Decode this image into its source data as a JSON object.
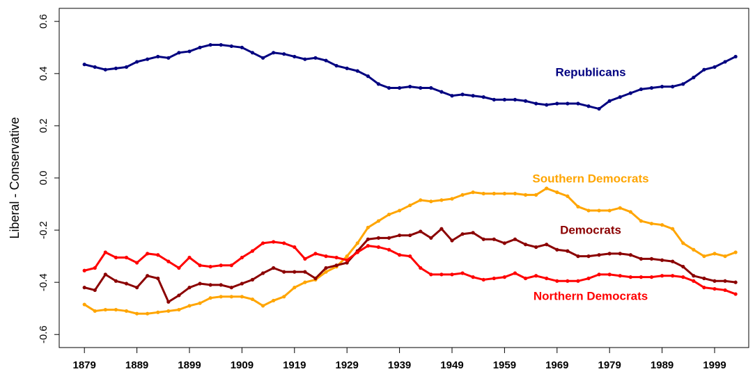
{
  "chart_data": {
    "type": "line",
    "ylabel": "Liberal - Conservative",
    "x": [
      1879,
      1881,
      1883,
      1885,
      1887,
      1889,
      1891,
      1893,
      1895,
      1897,
      1899,
      1901,
      1903,
      1905,
      1907,
      1909,
      1911,
      1913,
      1915,
      1917,
      1919,
      1921,
      1923,
      1925,
      1927,
      1929,
      1931,
      1933,
      1935,
      1937,
      1939,
      1941,
      1943,
      1945,
      1947,
      1949,
      1951,
      1953,
      1955,
      1957,
      1959,
      1961,
      1963,
      1965,
      1967,
      1969,
      1971,
      1973,
      1975,
      1977,
      1979,
      1981,
      1983,
      1985,
      1987,
      1989,
      1991,
      1993,
      1995,
      1997,
      1999,
      2001,
      2003
    ],
    "xlim": [
      1874.2,
      2005.5
    ],
    "xticks": [
      1879,
      1889,
      1899,
      1909,
      1919,
      1929,
      1939,
      1949,
      1959,
      1969,
      1979,
      1989,
      1999
    ],
    "ylim": [
      -0.65,
      0.65
    ],
    "yticks": [
      -0.6,
      -0.4,
      -0.2,
      {
        "value": 0,
        "label": "0.0"
      },
      0.2,
      0.4,
      0.6
    ],
    "series": [
      {
        "name": "Republicans",
        "color": "#000080",
        "values": [
          0.435,
          0.425,
          0.415,
          0.42,
          0.425,
          0.445,
          0.455,
          0.465,
          0.46,
          0.48,
          0.485,
          0.5,
          0.51,
          0.51,
          0.505,
          0.5,
          0.48,
          0.46,
          0.48,
          0.475,
          0.465,
          0.455,
          0.46,
          0.45,
          0.43,
          0.42,
          0.41,
          0.39,
          0.36,
          0.345,
          0.345,
          0.35,
          0.345,
          0.345,
          0.33,
          0.315,
          0.32,
          0.315,
          0.31,
          0.3,
          0.3,
          0.3,
          0.295,
          0.285,
          0.28,
          0.285,
          0.285,
          0.285,
          0.275,
          0.265,
          0.295,
          0.31,
          0.325,
          0.34,
          0.345,
          0.35,
          0.35,
          0.36,
          0.385,
          0.415,
          0.425,
          0.445,
          0.465
        ]
      },
      {
        "name": "Southern Democrats",
        "color": "#FFA500",
        "values": [
          -0.485,
          -0.51,
          -0.505,
          -0.505,
          -0.51,
          -0.52,
          -0.52,
          -0.515,
          -0.51,
          -0.505,
          -0.49,
          -0.48,
          -0.46,
          -0.455,
          -0.455,
          -0.455,
          -0.465,
          -0.49,
          -0.47,
          -0.455,
          -0.42,
          -0.4,
          -0.39,
          -0.36,
          -0.34,
          -0.3,
          -0.25,
          -0.19,
          -0.165,
          -0.14,
          -0.125,
          -0.105,
          -0.085,
          -0.09,
          -0.085,
          -0.08,
          -0.065,
          -0.055,
          -0.06,
          -0.06,
          -0.06,
          -0.06,
          -0.065,
          -0.065,
          -0.04,
          -0.055,
          -0.07,
          -0.11,
          -0.125,
          -0.125,
          -0.125,
          -0.115,
          -0.13,
          -0.165,
          -0.175,
          -0.18,
          -0.195,
          -0.25,
          -0.275,
          -0.3,
          -0.29,
          -0.3,
          -0.285
        ]
      },
      {
        "name": "Democrats",
        "color": "#8B0000",
        "values": [
          -0.42,
          -0.43,
          -0.37,
          -0.395,
          -0.405,
          -0.42,
          -0.375,
          -0.385,
          -0.475,
          -0.45,
          -0.42,
          -0.405,
          -0.41,
          -0.41,
          -0.42,
          -0.405,
          -0.39,
          -0.365,
          -0.345,
          -0.36,
          -0.36,
          -0.36,
          -0.385,
          -0.345,
          -0.335,
          -0.325,
          -0.28,
          -0.235,
          -0.23,
          -0.23,
          -0.22,
          -0.22,
          -0.205,
          -0.23,
          -0.195,
          -0.24,
          -0.215,
          -0.21,
          -0.235,
          -0.235,
          -0.25,
          -0.235,
          -0.255,
          -0.265,
          -0.255,
          -0.275,
          -0.28,
          -0.3,
          -0.3,
          -0.295,
          -0.29,
          -0.29,
          -0.295,
          -0.31,
          -0.31,
          -0.315,
          -0.32,
          -0.34,
          -0.375,
          -0.385,
          -0.395,
          -0.395,
          -0.4
        ]
      },
      {
        "name": "Northern Democrats",
        "color": "#FF0000",
        "values": [
          -0.355,
          -0.345,
          -0.285,
          -0.305,
          -0.305,
          -0.325,
          -0.29,
          -0.295,
          -0.32,
          -0.345,
          -0.305,
          -0.335,
          -0.34,
          -0.335,
          -0.335,
          -0.305,
          -0.28,
          -0.25,
          -0.245,
          -0.25,
          -0.265,
          -0.31,
          -0.29,
          -0.3,
          -0.305,
          -0.315,
          -0.285,
          -0.26,
          -0.265,
          -0.275,
          -0.295,
          -0.3,
          -0.345,
          -0.37,
          -0.37,
          -0.37,
          -0.365,
          -0.38,
          -0.39,
          -0.385,
          -0.38,
          -0.365,
          -0.385,
          -0.375,
          -0.385,
          -0.395,
          -0.395,
          -0.395,
          -0.385,
          -0.37,
          -0.37,
          -0.375,
          -0.38,
          -0.38,
          -0.38,
          -0.375,
          -0.375,
          -0.38,
          -0.395,
          -0.42,
          -0.425,
          -0.43,
          -0.445
        ]
      }
    ]
  }
}
